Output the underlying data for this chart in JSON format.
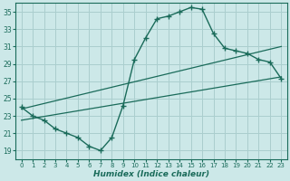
{
  "xlabel": "Humidex (Indice chaleur)",
  "bg_color": "#cce8e8",
  "grid_color": "#aacece",
  "line_color": "#1a6b5a",
  "xlim": [
    -0.5,
    23.5
  ],
  "ylim": [
    18,
    36
  ],
  "yticks": [
    19,
    21,
    23,
    25,
    27,
    29,
    31,
    33,
    35
  ],
  "xticks": [
    0,
    1,
    2,
    3,
    4,
    5,
    6,
    7,
    8,
    9,
    10,
    11,
    12,
    13,
    14,
    15,
    16,
    17,
    18,
    19,
    20,
    21,
    22,
    23
  ],
  "curve1_x": [
    0,
    1,
    2,
    3,
    4,
    5,
    6,
    7,
    8,
    9,
    10,
    11,
    12,
    13,
    14,
    15,
    16,
    17,
    18,
    19,
    20,
    21,
    22,
    23
  ],
  "curve1_y": [
    24.0,
    23.0,
    22.5,
    21.5,
    21.0,
    20.5,
    19.5,
    19.0,
    20.5,
    24.2,
    29.5,
    32.0,
    34.2,
    34.5,
    35.0,
    35.5,
    35.3,
    32.5,
    30.8,
    30.5,
    30.2,
    29.5,
    29.2,
    27.3
  ],
  "line1_x": [
    0,
    23
  ],
  "line1_y": [
    23.8,
    31.0
  ],
  "line2_x": [
    0,
    23
  ],
  "line2_y": [
    22.5,
    27.5
  ]
}
